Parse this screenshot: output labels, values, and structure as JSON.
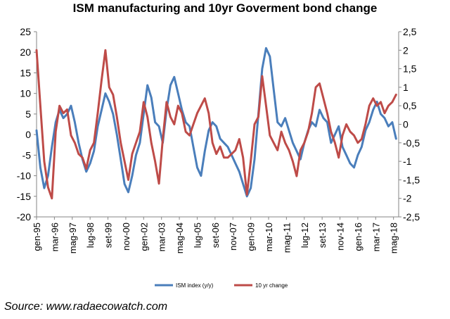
{
  "chart_data": {
    "type": "line",
    "title": "ISM manufacturing and 10yr Goverment bond change",
    "xlabel": "",
    "ylabel": "",
    "y_left_lim": [
      -20,
      25
    ],
    "y_left_ticks": [
      "-20",
      "-15",
      "-10",
      "-5",
      "0",
      "5",
      "10",
      "15",
      "20",
      "25"
    ],
    "y_right_lim": [
      -2.5,
      2.5
    ],
    "y_right_ticks": [
      "-2,5",
      "-2",
      "-1,5",
      "-1",
      "-0,5",
      "0",
      "0,5",
      "1",
      "1,5",
      "2",
      "2,5"
    ],
    "x_range": [
      1995.0,
      2018.67
    ],
    "x_tick_labels": [
      "gen-95",
      "mar-96",
      "mag-97",
      "lug-98",
      "set-99",
      "nov-00",
      "gen-02",
      "mar-03",
      "mag-04",
      "lug-05",
      "set-06",
      "nov-07",
      "gen-09",
      "mar-10",
      "mag-11",
      "lug-12",
      "set-13",
      "nov-14",
      "gen-16",
      "mar-17",
      "mag-18"
    ],
    "grid": "none",
    "legend_position": "bottom",
    "series": [
      {
        "name": "ISM index (y/y)",
        "axis": "left",
        "color": "#4a7ebb",
        "x": [
          1995.0,
          1995.25,
          1995.5,
          1995.75,
          1996.0,
          1996.25,
          1996.5,
          1996.75,
          1997.0,
          1997.25,
          1997.5,
          1997.75,
          1998.0,
          1998.25,
          1998.5,
          1998.75,
          1999.0,
          1999.25,
          1999.5,
          1999.75,
          2000.0,
          2000.25,
          2000.5,
          2000.75,
          2001.0,
          2001.25,
          2001.5,
          2001.75,
          2002.0,
          2002.25,
          2002.5,
          2002.75,
          2003.0,
          2003.25,
          2003.5,
          2003.75,
          2004.0,
          2004.25,
          2004.5,
          2004.75,
          2005.0,
          2005.25,
          2005.5,
          2005.75,
          2006.0,
          2006.25,
          2006.5,
          2006.75,
          2007.0,
          2007.25,
          2007.5,
          2007.75,
          2008.0,
          2008.25,
          2008.5,
          2008.75,
          2009.0,
          2009.25,
          2009.5,
          2009.75,
          2010.0,
          2010.25,
          2010.5,
          2010.75,
          2011.0,
          2011.25,
          2011.5,
          2011.75,
          2012.0,
          2012.25,
          2012.5,
          2012.75,
          2013.0,
          2013.25,
          2013.5,
          2013.75,
          2014.0,
          2014.25,
          2014.5,
          2014.75,
          2015.0,
          2015.25,
          2015.5,
          2015.75,
          2016.0,
          2016.25,
          2016.5,
          2016.75,
          2017.0,
          2017.25,
          2017.5,
          2017.75,
          2018.0,
          2018.25,
          2018.5
        ],
        "values": [
          1,
          -8,
          -13,
          -10,
          -3,
          3,
          6,
          4,
          5,
          7,
          3,
          -2,
          -6,
          -9,
          -7,
          -4,
          2,
          6,
          10,
          8,
          5,
          0,
          -6,
          -12,
          -14,
          -10,
          -5,
          -2,
          5,
          12,
          9,
          3,
          2,
          -2,
          6,
          12,
          14,
          10,
          6,
          3,
          2,
          -3,
          -8,
          -10,
          -4,
          1,
          3,
          2,
          -1,
          -2,
          -3,
          -5,
          -7,
          -9,
          -12,
          -15,
          -13,
          -6,
          5,
          16,
          21,
          19,
          11,
          3,
          2,
          4,
          1,
          -2,
          -4,
          -6,
          -2,
          1,
          3,
          2,
          6,
          4,
          3,
          -2,
          0,
          2,
          -3,
          -5,
          -7,
          -8,
          -5,
          -3,
          1,
          3,
          6,
          8,
          5,
          4,
          2,
          3,
          -1
        ]
      },
      {
        "name": "10 yr change",
        "axis": "right",
        "color": "#be4b48",
        "x": [
          1995.0,
          1995.25,
          1995.5,
          1995.75,
          1996.0,
          1996.25,
          1996.5,
          1996.75,
          1997.0,
          1997.25,
          1997.5,
          1997.75,
          1998.0,
          1998.25,
          1998.5,
          1998.75,
          1999.0,
          1999.25,
          1999.5,
          1999.75,
          2000.0,
          2000.25,
          2000.5,
          2000.75,
          2001.0,
          2001.25,
          2001.5,
          2001.75,
          2002.0,
          2002.25,
          2002.5,
          2002.75,
          2003.0,
          2003.25,
          2003.5,
          2003.75,
          2004.0,
          2004.25,
          2004.5,
          2004.75,
          2005.0,
          2005.25,
          2005.5,
          2005.75,
          2006.0,
          2006.25,
          2006.5,
          2006.75,
          2007.0,
          2007.25,
          2007.5,
          2007.75,
          2008.0,
          2008.25,
          2008.5,
          2008.75,
          2009.0,
          2009.25,
          2009.5,
          2009.75,
          2010.0,
          2010.25,
          2010.5,
          2010.75,
          2011.0,
          2011.25,
          2011.5,
          2011.75,
          2012.0,
          2012.25,
          2012.5,
          2012.75,
          2013.0,
          2013.25,
          2013.5,
          2013.75,
          2014.0,
          2014.25,
          2014.5,
          2014.75,
          2015.0,
          2015.25,
          2015.5,
          2015.75,
          2016.0,
          2016.25,
          2016.5,
          2016.75,
          2017.0,
          2017.25,
          2017.5,
          2017.75,
          2018.0,
          2018.25,
          2018.5
        ],
        "values": [
          2.0,
          0.5,
          -1.0,
          -1.7,
          -2.0,
          -0.2,
          0.5,
          0.3,
          0.4,
          -0.3,
          -0.5,
          -0.8,
          -0.9,
          -1.2,
          -0.7,
          -0.5,
          0.3,
          1.2,
          2.0,
          1.0,
          0.8,
          0.2,
          -0.5,
          -1.0,
          -1.5,
          -0.8,
          -0.5,
          -0.2,
          0.6,
          0.2,
          -0.5,
          -1.0,
          -1.6,
          -0.4,
          0.6,
          0.2,
          0.0,
          0.5,
          0.3,
          -0.2,
          -0.3,
          0.0,
          0.3,
          0.5,
          0.7,
          0.3,
          -0.5,
          -0.8,
          -0.6,
          -0.9,
          -0.9,
          -0.8,
          -0.7,
          -0.4,
          -0.9,
          -1.9,
          -1.0,
          0.0,
          0.2,
          1.3,
          0.5,
          -0.3,
          -0.5,
          -0.7,
          -0.2,
          -0.5,
          -0.7,
          -1.0,
          -1.4,
          -0.7,
          -0.5,
          -0.2,
          0.3,
          1.0,
          1.1,
          0.7,
          0.3,
          -0.2,
          -0.5,
          -0.9,
          -0.3,
          0.0,
          -0.2,
          -0.3,
          -0.5,
          -0.4,
          0.0,
          0.5,
          0.7,
          0.5,
          0.6,
          0.3,
          0.5,
          0.6,
          0.8
        ]
      }
    ],
    "source": "Source: www.radaecowatch.com"
  }
}
